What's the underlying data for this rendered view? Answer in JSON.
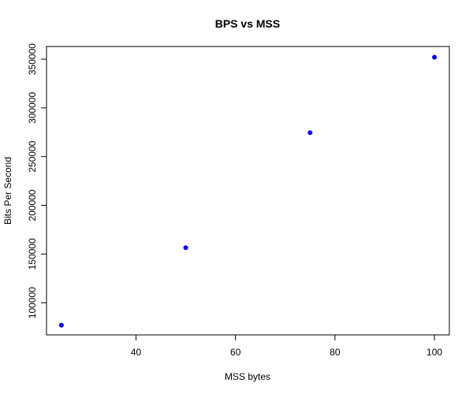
{
  "chart_data": {
    "type": "scatter",
    "title": "BPS vs MSS",
    "xlabel": "MSS bytes",
    "ylabel": "Bits Per Second",
    "x": [
      25,
      50,
      75,
      100
    ],
    "y": [
      77000,
      156500,
      274500,
      352000
    ],
    "xlim": [
      22,
      103
    ],
    "ylim": [
      67000,
      363000
    ],
    "xticks": [
      40,
      60,
      80,
      100
    ],
    "yticks": [
      100000,
      150000,
      200000,
      250000,
      300000,
      350000
    ],
    "point_color": "#0000ee",
    "grid": false
  }
}
